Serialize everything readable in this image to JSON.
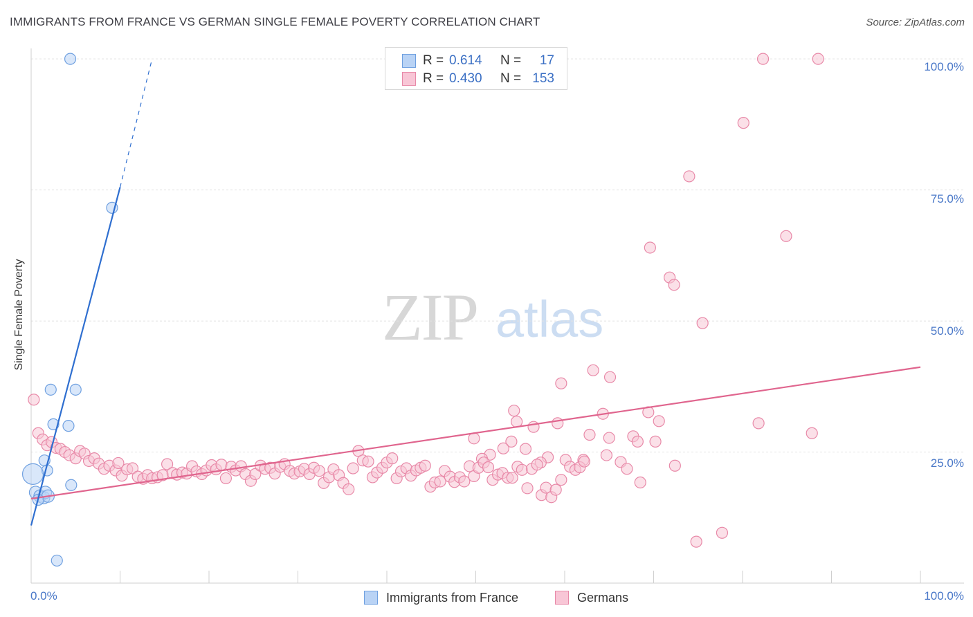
{
  "title": "IMMIGRANTS FROM FRANCE VS GERMAN SINGLE FEMALE POVERTY CORRELATION CHART",
  "source": "Source: ZipAtlas.com",
  "watermark": {
    "zip": "ZIP",
    "atlas": "atlas"
  },
  "colors": {
    "france_fill": "#b9d3f5",
    "france_stroke": "#6fa0e0",
    "france_line": "#2f6fd0",
    "germans_fill": "#f8c6d6",
    "germans_stroke": "#e889a8",
    "germans_line": "#e0658e",
    "tick_text": "#4a78c8",
    "grid": "#e2e2e2"
  },
  "stats_legend": {
    "rows": [
      {
        "r_label": "R =",
        "r_value": "0.614",
        "n_label": "N =",
        "n_value": "17",
        "series": "france"
      },
      {
        "r_label": "R =",
        "r_value": "0.430",
        "n_label": "N =",
        "n_value": "153",
        "series": "germans"
      }
    ]
  },
  "chart_data": {
    "type": "scatter",
    "title": "IMMIGRANTS FROM FRANCE VS GERMAN SINGLE FEMALE POVERTY CORRELATION CHART",
    "xlabel": "",
    "ylabel": "Single Female Poverty",
    "xlim": [
      0,
      100
    ],
    "ylim": [
      0,
      102
    ],
    "x_tick_labels": [
      "0.0%",
      "100.0%"
    ],
    "y_ticks": [
      25,
      50,
      75,
      100
    ],
    "y_tick_labels": [
      "25.0%",
      "50.0%",
      "75.0%",
      "100.0%"
    ],
    "grid": true,
    "legend": [
      "Immigrants from France",
      "Germans"
    ],
    "series": [
      {
        "name": "Immigrants from France",
        "trend": {
          "x0": 0,
          "y0": 11,
          "x1": 10,
          "y1": 75.5,
          "dashed_to_x": 13.6,
          "dashed_to_y": 100
        },
        "points": [
          [
            4.4,
            100,
            8
          ],
          [
            9.1,
            71.6,
            8
          ],
          [
            2.2,
            36.9,
            8
          ],
          [
            5.0,
            36.9,
            8
          ],
          [
            2.5,
            30.3,
            8
          ],
          [
            4.2,
            30.0,
            8
          ],
          [
            1.5,
            23.4,
            8
          ],
          [
            1.8,
            21.5,
            8
          ],
          [
            4.5,
            18.7,
            8
          ],
          [
            0.2,
            20.8,
            15
          ],
          [
            0.5,
            17.3,
            9
          ],
          [
            1.0,
            16.6,
            9
          ],
          [
            1.4,
            16.3,
            9
          ],
          [
            1.6,
            17.3,
            9
          ],
          [
            1.9,
            16.6,
            9
          ],
          [
            0.8,
            15.9,
            8
          ],
          [
            2.9,
            4.3,
            8
          ]
        ]
      },
      {
        "name": "Germans",
        "trend": {
          "x0": 0,
          "y0": 16.1,
          "x1": 100,
          "y1": 41.2
        },
        "points": [
          [
            82.3,
            100,
            8
          ],
          [
            88.5,
            100,
            8
          ],
          [
            80.1,
            87.8,
            8
          ],
          [
            74.0,
            77.6,
            8
          ],
          [
            84.9,
            66.2,
            8
          ],
          [
            69.6,
            64.0,
            8
          ],
          [
            71.8,
            58.3,
            8
          ],
          [
            72.3,
            56.9,
            8
          ],
          [
            75.5,
            49.6,
            8
          ],
          [
            63.2,
            40.6,
            8
          ],
          [
            65.1,
            39.3,
            8
          ],
          [
            59.6,
            38.1,
            8
          ],
          [
            54.3,
            32.9,
            8
          ],
          [
            54.6,
            30.8,
            8
          ],
          [
            56.5,
            29.8,
            8
          ],
          [
            59.2,
            30.5,
            8
          ],
          [
            64.3,
            32.3,
            8
          ],
          [
            69.4,
            32.6,
            8
          ],
          [
            70.6,
            30.9,
            8
          ],
          [
            81.8,
            30.5,
            8
          ],
          [
            49.8,
            27.6,
            8
          ],
          [
            54.0,
            27.0,
            8
          ],
          [
            62.8,
            28.3,
            8
          ],
          [
            65.0,
            27.7,
            8
          ],
          [
            67.7,
            28.0,
            8
          ],
          [
            68.2,
            27.0,
            8
          ],
          [
            70.2,
            27.0,
            8
          ],
          [
            53.1,
            25.7,
            8
          ],
          [
            55.6,
            25.6,
            8
          ],
          [
            51.6,
            24.5,
            8
          ],
          [
            58.1,
            24.0,
            8
          ],
          [
            50.7,
            23.7,
            8
          ],
          [
            62.1,
            23.5,
            8
          ],
          [
            66.3,
            23.1,
            8
          ],
          [
            57.3,
            23.0,
            8
          ],
          [
            0.3,
            35.0,
            8
          ],
          [
            0.8,
            28.6,
            8
          ],
          [
            1.3,
            27.4,
            8
          ],
          [
            1.8,
            26.3,
            8
          ],
          [
            2.3,
            26.9,
            8
          ],
          [
            2.8,
            25.8,
            8
          ],
          [
            3.3,
            25.6,
            8
          ],
          [
            3.8,
            25.0,
            8
          ],
          [
            4.3,
            24.4,
            8
          ],
          [
            5.0,
            23.8,
            8
          ],
          [
            5.5,
            25.2,
            8
          ],
          [
            6.0,
            24.7,
            8
          ],
          [
            6.5,
            23.3,
            8
          ],
          [
            7.1,
            23.8,
            8
          ],
          [
            7.6,
            22.8,
            8
          ],
          [
            8.2,
            21.8,
            8
          ],
          [
            8.8,
            22.4,
            8
          ],
          [
            9.5,
            21.5,
            8
          ],
          [
            9.8,
            22.9,
            8
          ],
          [
            10.2,
            20.5,
            8
          ],
          [
            10.8,
            21.7,
            8
          ],
          [
            11.4,
            21.9,
            8
          ],
          [
            12.0,
            20.3,
            8
          ],
          [
            12.6,
            19.9,
            8
          ],
          [
            13.1,
            20.6,
            8
          ],
          [
            13.6,
            20.0,
            8
          ],
          [
            14.2,
            20.2,
            8
          ],
          [
            14.8,
            20.6,
            8
          ],
          [
            15.3,
            22.7,
            8
          ],
          [
            15.9,
            21.0,
            8
          ],
          [
            16.4,
            20.7,
            8
          ],
          [
            17.0,
            21.1,
            8
          ],
          [
            17.5,
            20.9,
            8
          ],
          [
            18.1,
            22.3,
            8
          ],
          [
            18.6,
            21.3,
            8
          ],
          [
            19.2,
            20.8,
            8
          ],
          [
            19.7,
            21.5,
            8
          ],
          [
            20.3,
            22.5,
            8
          ],
          [
            20.8,
            21.7,
            8
          ],
          [
            21.4,
            22.6,
            8
          ],
          [
            21.9,
            20.0,
            8
          ],
          [
            22.5,
            22.2,
            8
          ],
          [
            23.0,
            21.5,
            8
          ],
          [
            23.6,
            22.3,
            8
          ],
          [
            24.1,
            20.8,
            8
          ],
          [
            24.7,
            19.5,
            8
          ],
          [
            25.2,
            20.8,
            8
          ],
          [
            25.8,
            22.4,
            8
          ],
          [
            26.3,
            21.8,
            8
          ],
          [
            26.9,
            22.0,
            8
          ],
          [
            27.4,
            20.9,
            8
          ],
          [
            28.0,
            22.2,
            8
          ],
          [
            28.5,
            22.7,
            8
          ],
          [
            29.1,
            21.4,
            8
          ],
          [
            29.6,
            20.9,
            8
          ],
          [
            30.2,
            21.3,
            8
          ],
          [
            30.7,
            21.8,
            8
          ],
          [
            31.3,
            20.8,
            8
          ],
          [
            31.8,
            22.0,
            8
          ],
          [
            32.4,
            21.4,
            8
          ],
          [
            32.9,
            19.1,
            8
          ],
          [
            33.5,
            20.2,
            8
          ],
          [
            34.0,
            21.7,
            8
          ],
          [
            34.6,
            20.6,
            8
          ],
          [
            35.1,
            19.1,
            8
          ],
          [
            35.7,
            17.9,
            8
          ],
          [
            36.2,
            21.9,
            8
          ],
          [
            36.8,
            25.2,
            8
          ],
          [
            37.3,
            23.4,
            8
          ],
          [
            37.9,
            23.2,
            8
          ],
          [
            38.4,
            20.2,
            8
          ],
          [
            38.9,
            21.1,
            8
          ],
          [
            39.5,
            22.0,
            8
          ],
          [
            40.0,
            23.0,
            8
          ],
          [
            40.6,
            23.8,
            8
          ],
          [
            41.1,
            20.0,
            8
          ],
          [
            41.6,
            21.3,
            8
          ],
          [
            42.2,
            21.9,
            8
          ],
          [
            42.7,
            20.5,
            8
          ],
          [
            43.3,
            21.5,
            8
          ],
          [
            43.8,
            22.0,
            8
          ],
          [
            44.3,
            22.4,
            8
          ],
          [
            44.9,
            18.4,
            8
          ],
          [
            45.4,
            19.2,
            8
          ],
          [
            46.0,
            19.4,
            8
          ],
          [
            46.5,
            21.4,
            8
          ],
          [
            47.1,
            20.3,
            8
          ],
          [
            47.6,
            19.3,
            8
          ],
          [
            48.2,
            20.2,
            8
          ],
          [
            48.7,
            19.4,
            8
          ],
          [
            49.3,
            22.3,
            8
          ],
          [
            49.8,
            20.4,
            8
          ],
          [
            50.3,
            22.0,
            8
          ],
          [
            50.9,
            23.0,
            8
          ],
          [
            51.4,
            22.1,
            8
          ],
          [
            51.9,
            19.7,
            8
          ],
          [
            52.5,
            20.7,
            8
          ],
          [
            53.0,
            21.0,
            8
          ],
          [
            53.6,
            20.1,
            8
          ],
          [
            54.1,
            20.1,
            8
          ],
          [
            54.7,
            22.2,
            8
          ],
          [
            55.2,
            21.6,
            8
          ],
          [
            55.8,
            18.1,
            8
          ],
          [
            56.3,
            21.8,
            8
          ],
          [
            56.9,
            22.6,
            8
          ],
          [
            57.4,
            16.8,
            8
          ],
          [
            57.9,
            18.2,
            8
          ],
          [
            58.5,
            16.4,
            8
          ],
          [
            59.0,
            17.8,
            8
          ],
          [
            59.6,
            19.7,
            8
          ],
          [
            60.1,
            23.5,
            8
          ],
          [
            60.6,
            22.2,
            8
          ],
          [
            61.2,
            21.6,
            8
          ],
          [
            61.7,
            22.1,
            8
          ],
          [
            62.2,
            23.2,
            8
          ],
          [
            72.4,
            22.4,
            8
          ],
          [
            87.8,
            28.6,
            8
          ],
          [
            74.8,
            7.9,
            8
          ],
          [
            77.7,
            9.6,
            8
          ],
          [
            67.0,
            21.8,
            8
          ],
          [
            68.5,
            19.2,
            8
          ],
          [
            64.7,
            24.4,
            8
          ]
        ]
      }
    ]
  },
  "bottom_legend": {
    "france_label": "Immigrants from France",
    "germans_label": "Germans"
  }
}
